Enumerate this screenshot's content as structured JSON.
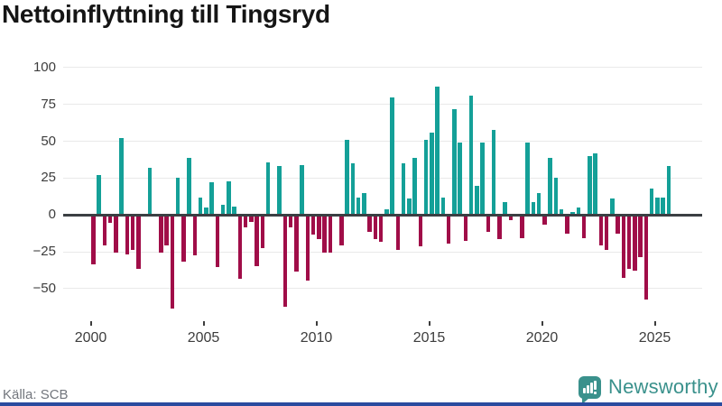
{
  "header": {
    "title": "Nettoinflyttning till Tingsryd"
  },
  "footer": {
    "source": "Källa: SCB",
    "brand": "Newsworthy"
  },
  "colors": {
    "positive": "#14a098",
    "negative": "#a00d48",
    "axis": "#3b3f43",
    "grid": "#e9e9e9",
    "tick_label": "#3d3d3d",
    "title": "#151515",
    "source": "#72767d",
    "brand_teal": "#3a918c",
    "brand_blue": "#2a4b9f"
  },
  "chart_data": {
    "type": "bar",
    "title": "Nettoinflyttning till Tingsryd",
    "period": "quarterly",
    "start_period": "2000 Q1",
    "end_period": "2025 Q3",
    "values": [
      -33,
      27,
      -20,
      -5,
      -25,
      52,
      -26,
      -23,
      -36,
      0,
      32,
      1,
      -25,
      -20,
      -63,
      25,
      -31,
      39,
      -27,
      12,
      5,
      22,
      -35,
      7,
      23,
      6,
      -43,
      -8,
      -4,
      -34,
      -22,
      36,
      1,
      33,
      -62,
      -8,
      -38,
      34,
      -44,
      -13,
      -16,
      -25,
      -25,
      0,
      -20,
      51,
      35,
      12,
      15,
      -11,
      -16,
      -18,
      4,
      80,
      -23,
      35,
      11,
      39,
      -21,
      51,
      56,
      87,
      12,
      -19,
      72,
      49,
      -17,
      81,
      20,
      49,
      -11,
      58,
      -16,
      9,
      -3,
      1,
      -15,
      49,
      9,
      15,
      -6,
      39,
      25,
      4,
      -12,
      2,
      5,
      -15,
      40,
      42,
      -20,
      -23,
      11,
      -12,
      -42,
      -36,
      -37,
      -28,
      -57,
      18,
      12,
      12,
      33
    ],
    "y_ticks": [
      100,
      75,
      50,
      25,
      0,
      -25,
      -50
    ],
    "y_tick_labels": [
      "100",
      "75",
      "50",
      "25",
      "0",
      "−25",
      "−50"
    ],
    "x_ticks": [
      "2000",
      "2005",
      "2010",
      "2015",
      "2020",
      "2025"
    ],
    "ylim": [
      -70,
      105
    ],
    "grid": true,
    "legend": "none",
    "positive_color": "#14a098",
    "negative_color": "#a00d48"
  }
}
